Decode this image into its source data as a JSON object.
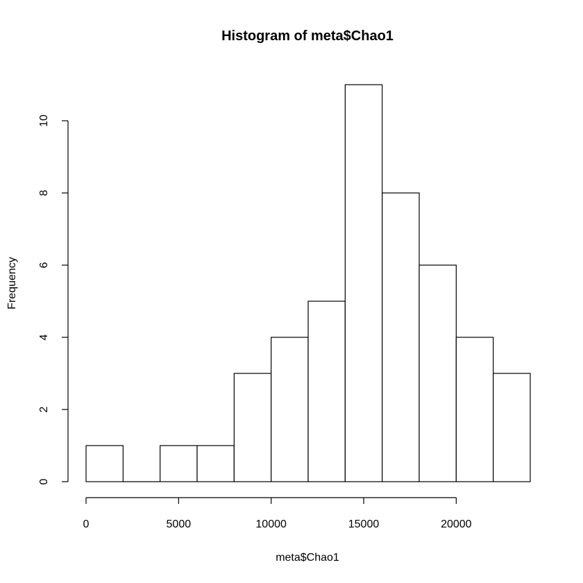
{
  "chart_data": {
    "type": "bar",
    "title": "Histogram of meta$Chao1",
    "xlabel": "meta$Chao1",
    "ylabel": "Frequency",
    "bin_edges": [
      0,
      2000,
      4000,
      6000,
      8000,
      10000,
      12000,
      14000,
      16000,
      18000,
      20000,
      22000,
      24000
    ],
    "values": [
      1,
      0,
      1,
      1,
      3,
      4,
      5,
      11,
      8,
      6,
      4,
      3
    ],
    "x_ticks": [
      0,
      5000,
      10000,
      15000,
      20000
    ],
    "y_ticks": [
      0,
      2,
      4,
      6,
      8,
      10
    ],
    "xlim": [
      0,
      24000
    ],
    "ylim": [
      0,
      11
    ],
    "bar_fill": "#ffffff",
    "bar_stroke": "#000000",
    "grid": false
  }
}
